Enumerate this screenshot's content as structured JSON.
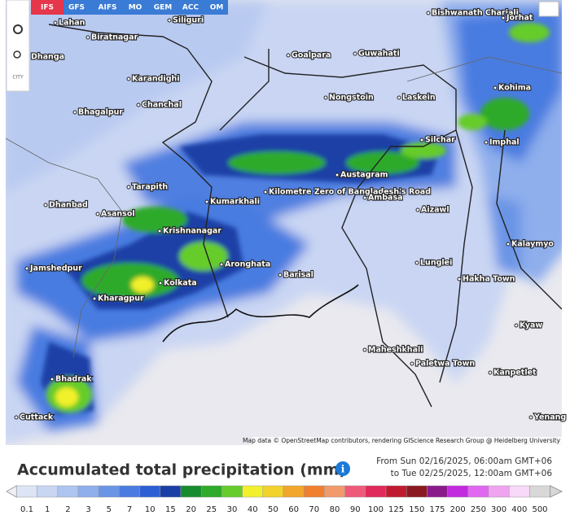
{
  "toolbar": {
    "models": [
      "IFS",
      "GFS",
      "AIFS",
      "MO",
      "GEM",
      "ACC",
      "OM"
    ],
    "city_button": "CITY"
  },
  "map": {
    "cities": [
      "Lahan",
      "Biratnagar",
      "Siliguri",
      "Bishwanath Chariali",
      "Jorhat",
      "Dhanga",
      "Goalpara",
      "Guwahati",
      "Karandighi",
      "Nongstoin",
      "Laskein",
      "Kohima",
      "Chanchal",
      "Bhagalpur",
      "Silchar",
      "Imphal",
      "Austagram",
      "Tarapith",
      "Kumarkhali",
      "Kilometre Zero of Bangladesh's Road",
      "Ambasa",
      "Aizawl",
      "Dhanbad",
      "Asansol",
      "Krishnanagar",
      "Kalaymyo",
      "Jamshedpur",
      "Aronghata",
      "Lunglei",
      "Barisal",
      "Hakha Town",
      "Kolkata",
      "Kharagpur",
      "Kyaw",
      "Maheshkhali",
      "Paletwa Town",
      "Kanpetlet",
      "Bhadrak",
      "Cuttack",
      "Yenang"
    ],
    "attribution": "Map data © OpenStreetMap contributors, rendering GIScience Research Group @ Heidelberg University"
  },
  "footer": {
    "title": "Accumulated total precipitation (mm)",
    "from": "From Sun 02/16/2025, 06:00am GMT+06",
    "to": "to Tue 02/25/2025, 12:00am GMT+06"
  },
  "legend": [
    {
      "label": "0.1",
      "color": "#dde4f6"
    },
    {
      "label": "1",
      "color": "#c8d6f4"
    },
    {
      "label": "2",
      "color": "#adc4f0"
    },
    {
      "label": "3",
      "color": "#8eaeec"
    },
    {
      "label": "5",
      "color": "#6a94e6"
    },
    {
      "label": "7",
      "color": "#4a7be0"
    },
    {
      "label": "10",
      "color": "#2c5fd4"
    },
    {
      "label": "15",
      "color": "#1b3fa6"
    },
    {
      "label": "20",
      "color": "#178c2e"
    },
    {
      "label": "25",
      "color": "#2faa2a"
    },
    {
      "label": "30",
      "color": "#66cc2c"
    },
    {
      "label": "40",
      "color": "#f2f02c"
    },
    {
      "label": "50",
      "color": "#f2d22c"
    },
    {
      "label": "60",
      "color": "#f2a62c"
    },
    {
      "label": "70",
      "color": "#f07f2e"
    },
    {
      "label": "80",
      "color": "#f29a6c"
    },
    {
      "label": "90",
      "color": "#f05a7a"
    },
    {
      "label": "100",
      "color": "#e02a5c"
    },
    {
      "label": "125",
      "color": "#c01a30"
    },
    {
      "label": "150",
      "color": "#8a1820"
    },
    {
      "label": "175",
      "color": "#8a1a8a"
    },
    {
      "label": "200",
      "color": "#c22ae0"
    },
    {
      "label": "250",
      "color": "#e068f0"
    },
    {
      "label": "300",
      "color": "#f0a4f0"
    },
    {
      "label": "400",
      "color": "#f8d8f8"
    },
    {
      "label": "500",
      "color": "#d8d8d8"
    }
  ]
}
